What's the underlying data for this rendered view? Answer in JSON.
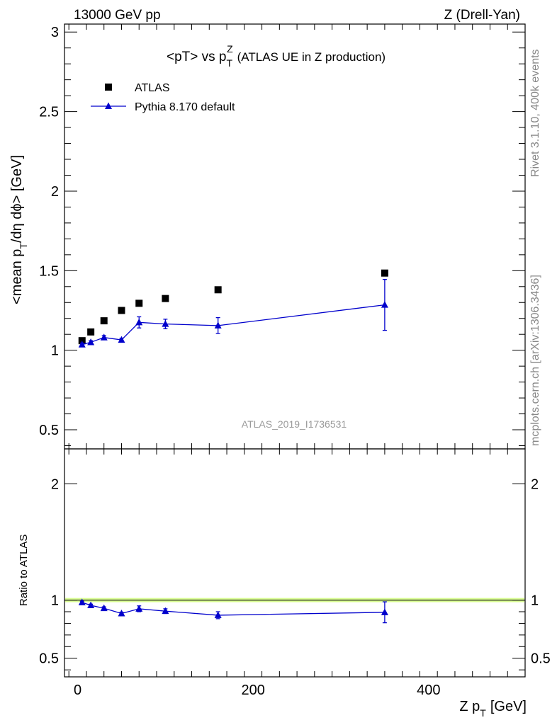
{
  "header": {
    "left": "13000 GeV pp",
    "right": "Z (Drell-Yan)"
  },
  "side_labels": {
    "rivet": "Rivet 3.1.10,  400k events",
    "mcplots": "mcplots.cern.ch [arXiv:1306.3436]"
  },
  "watermark": "ATLAS_2019_I1736531",
  "chart_data": [
    {
      "type": "scatter",
      "panel": "main",
      "title_main": "<pT> vs p",
      "title_sup": "Z",
      "title_sub": "T",
      "title_rest": "(ATLAS UE in Z production)",
      "ylabel_main": "<mean p",
      "ylabel_sub": "T",
      "ylabel_rest": "/dη dϕ> [GeV]",
      "xlim": [
        -15,
        510
      ],
      "ylim": [
        0.38,
        3.05
      ],
      "yticks": [
        0.5,
        1,
        1.5,
        2,
        2.5,
        3
      ],
      "ytick_labels": [
        "0.5",
        "1",
        "1.5",
        "2",
        "2.5",
        "3"
      ],
      "legend_position": "top-left",
      "series": [
        {
          "name": "ATLAS",
          "style": "square",
          "color": "#000000",
          "x": [
            5,
            15,
            30,
            50,
            70,
            100,
            160,
            350
          ],
          "y": [
            1.06,
            1.115,
            1.185,
            1.25,
            1.295,
            1.325,
            1.38,
            1.485
          ]
        },
        {
          "name": "Pythia 8.170 default",
          "style": "triangle-line",
          "color": "#0000cc",
          "x": [
            5,
            15,
            30,
            50,
            70,
            100,
            160,
            350
          ],
          "y": [
            1.035,
            1.05,
            1.08,
            1.065,
            1.175,
            1.165,
            1.155,
            1.285
          ],
          "yerr": [
            0.01,
            0.01,
            0.012,
            0.01,
            0.035,
            0.03,
            0.05,
            0.16
          ]
        }
      ]
    },
    {
      "type": "scatter",
      "panel": "ratio",
      "ylabel": "Ratio to ATLAS",
      "xlabel_main": "Z p",
      "xlabel_sub": "T",
      "xlabel_rest": "[GeV]",
      "xlim": [
        -15,
        510
      ],
      "ylim": [
        0.34,
        2.3
      ],
      "xticks": [
        0,
        200,
        400
      ],
      "xtick_labels": [
        "0",
        "200",
        "400"
      ],
      "yticks": [
        0.5,
        1,
        2
      ],
      "ytick_labels": [
        "0.5",
        "1",
        "2"
      ],
      "band_color": "#ccff66",
      "series": [
        {
          "name": "Pythia 8.170 default",
          "color": "#0000cc",
          "x": [
            5,
            15,
            30,
            50,
            70,
            100,
            160,
            350
          ],
          "y": [
            0.98,
            0.955,
            0.93,
            0.885,
            0.925,
            0.905,
            0.87,
            0.895
          ],
          "yerr": [
            0.01,
            0.01,
            0.012,
            0.01,
            0.025,
            0.02,
            0.03,
            0.09
          ]
        }
      ]
    }
  ]
}
